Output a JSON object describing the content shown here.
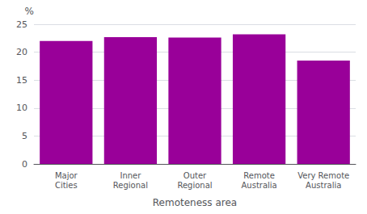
{
  "chart_data": {
    "type": "bar",
    "categories": [
      "Major\nCities",
      "Inner\nRegional",
      "Outer\nRegional",
      "Remote\nAustralia",
      "Very Remote\nAustralia"
    ],
    "values": [
      22.0,
      22.7,
      22.6,
      23.2,
      18.5
    ],
    "color": "#990099",
    "xlabel": "Remoteness area",
    "ylabel": "%",
    "ylim": [
      0,
      25
    ],
    "yticks": [
      0,
      5,
      10,
      15,
      20,
      25
    ],
    "grid": true
  }
}
